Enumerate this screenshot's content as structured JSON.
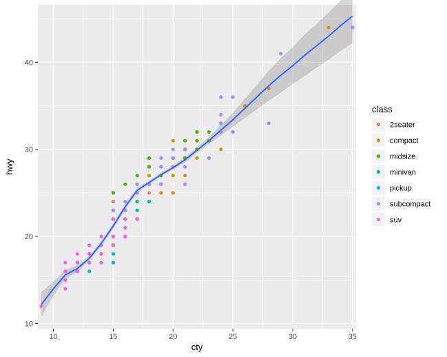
{
  "chart_data": {
    "type": "scatter",
    "xlabel": "cty",
    "ylabel": "hwy",
    "xlim": [
      8.7,
      35.3
    ],
    "ylim": [
      9.4,
      46.6
    ],
    "x_ticks": [
      10,
      15,
      20,
      25,
      30,
      35
    ],
    "y_ticks": [
      10,
      20,
      30,
      40
    ],
    "grid": true,
    "legend": {
      "title": "class",
      "position": "right"
    },
    "series": [
      {
        "name": "2seater",
        "color": "#F8766D",
        "points": [
          [
            15,
            24
          ],
          [
            15,
            25
          ],
          [
            16,
            23
          ],
          [
            15,
            24
          ],
          [
            16,
            23
          ],
          [
            17,
            24
          ],
          [
            18,
            25
          ],
          [
            18,
            26
          ]
        ]
      },
      {
        "name": "compact",
        "color": "#C49A00",
        "points": [
          [
            18,
            29
          ],
          [
            21,
            29
          ],
          [
            20,
            31
          ],
          [
            21,
            30
          ],
          [
            16,
            26
          ],
          [
            18,
            26
          ],
          [
            18,
            27
          ],
          [
            17,
            25
          ],
          [
            19,
            25
          ],
          [
            20,
            25
          ],
          [
            19,
            28
          ],
          [
            21,
            27
          ],
          [
            22,
            29
          ],
          [
            23,
            29
          ],
          [
            24,
            30
          ],
          [
            22,
            31
          ],
          [
            26,
            35
          ],
          [
            28,
            37
          ],
          [
            33,
            44
          ],
          [
            21,
            31
          ],
          [
            19,
            26
          ],
          [
            20,
            27
          ],
          [
            21,
            29
          ],
          [
            22,
            30
          ]
        ]
      },
      {
        "name": "midsize",
        "color": "#53B400",
        "points": [
          [
            15,
            25
          ],
          [
            16,
            26
          ],
          [
            17,
            25
          ],
          [
            18,
            28
          ],
          [
            19,
            27
          ],
          [
            17,
            26
          ],
          [
            18,
            29
          ],
          [
            21,
            31
          ],
          [
            22,
            30
          ],
          [
            19,
            27
          ],
          [
            16,
            24
          ],
          [
            18,
            28
          ],
          [
            21,
            30
          ],
          [
            23,
            32
          ],
          [
            19,
            26
          ],
          [
            22,
            31
          ],
          [
            20,
            29
          ],
          [
            23,
            31
          ],
          [
            24,
            33
          ],
          [
            21,
            29
          ],
          [
            22,
            32
          ],
          [
            17,
            27
          ]
        ]
      },
      {
        "name": "minivan",
        "color": "#00C094",
        "points": [
          [
            18,
            24
          ],
          [
            17,
            24
          ],
          [
            16,
            22
          ],
          [
            16,
            22
          ],
          [
            17,
            24
          ],
          [
            17,
            24
          ],
          [
            15,
            22
          ],
          [
            17,
            23
          ],
          [
            16,
            23
          ],
          [
            17,
            25
          ],
          [
            15,
            23
          ]
        ]
      },
      {
        "name": "pickup",
        "color": "#00B6EB",
        "points": [
          [
            15,
            20
          ],
          [
            14,
            19
          ],
          [
            13,
            17
          ],
          [
            14,
            18
          ],
          [
            15,
            19
          ],
          [
            15,
            18
          ],
          [
            15,
            17
          ],
          [
            14,
            17
          ],
          [
            13,
            16
          ],
          [
            15,
            20
          ],
          [
            17,
            22
          ],
          [
            16,
            20
          ],
          [
            15,
            19
          ],
          [
            14,
            18
          ],
          [
            13,
            17
          ],
          [
            12,
            17
          ],
          [
            11,
            16
          ],
          [
            12,
            17
          ],
          [
            14,
            17
          ],
          [
            15,
            17
          ],
          [
            17,
            22
          ],
          [
            16,
            20
          ],
          [
            15,
            19
          ],
          [
            11,
            15
          ]
        ]
      },
      {
        "name": "subcompact",
        "color": "#A58AFF",
        "points": [
          [
            18,
            26
          ],
          [
            21,
            26
          ],
          [
            19,
            28
          ],
          [
            19,
            29
          ],
          [
            20,
            30
          ],
          [
            18,
            26
          ],
          [
            20,
            29
          ],
          [
            20,
            29
          ],
          [
            21,
            28
          ],
          [
            24,
            32
          ],
          [
            24,
            36
          ],
          [
            25,
            36
          ],
          [
            23,
            29
          ],
          [
            28,
            33
          ],
          [
            29,
            41
          ],
          [
            35,
            44
          ],
          [
            19,
            26
          ],
          [
            20,
            29
          ],
          [
            25,
            32
          ],
          [
            24,
            34
          ],
          [
            21,
            30
          ],
          [
            17,
            26
          ],
          [
            18,
            26
          ],
          [
            20,
            28
          ],
          [
            21,
            30
          ],
          [
            24,
            33
          ],
          [
            16,
            24
          ],
          [
            15,
            20
          ],
          [
            15,
            23
          ],
          [
            14,
            20
          ],
          [
            16,
            23
          ],
          [
            17,
            25
          ],
          [
            15,
            22
          ],
          [
            18,
            26
          ],
          [
            20,
            28
          ]
        ]
      },
      {
        "name": "suv",
        "color": "#FB61D7",
        "points": [
          [
            9,
            12
          ],
          [
            11,
            14
          ],
          [
            11,
            15
          ],
          [
            11,
            16
          ],
          [
            11,
            17
          ],
          [
            12,
            18
          ],
          [
            12,
            17
          ],
          [
            13,
            19
          ],
          [
            13,
            17
          ],
          [
            14,
            19
          ],
          [
            14,
            18
          ],
          [
            14,
            17
          ],
          [
            15,
            19
          ],
          [
            16,
            20
          ],
          [
            15,
            22
          ],
          [
            16,
            22
          ],
          [
            13,
            18
          ],
          [
            14,
            20
          ],
          [
            15,
            20
          ],
          [
            16,
            21
          ],
          [
            17,
            22
          ],
          [
            14,
            19
          ],
          [
            15,
            20
          ],
          [
            11,
            16
          ],
          [
            12,
            16
          ],
          [
            12,
            17
          ],
          [
            14,
            19
          ],
          [
            15,
            19
          ],
          [
            13,
            18
          ],
          [
            12,
            16
          ]
        ]
      }
    ],
    "smooth_line": {
      "color": "#3366FF",
      "band_color": "#999999",
      "x": [
        9,
        10,
        11,
        12,
        13,
        14,
        15,
        16,
        17,
        18,
        19,
        20,
        21,
        22,
        23,
        24,
        25,
        26,
        27,
        28,
        29,
        30,
        31,
        32,
        33,
        34,
        35
      ],
      "y": [
        12.2,
        14.0,
        15.6,
        16.3,
        17.5,
        19.2,
        21.2,
        23.4,
        25.3,
        26.2,
        27.1,
        27.9,
        28.8,
        29.9,
        31.0,
        32.2,
        33.4,
        34.7,
        36.0,
        37.3,
        38.5,
        39.6,
        40.8,
        41.9,
        43.0,
        44.2,
        45.3
      ],
      "lower": [
        10.8,
        13.2,
        15.1,
        15.9,
        17.2,
        18.9,
        20.9,
        23.1,
        25.0,
        26.0,
        26.9,
        27.7,
        28.5,
        29.6,
        30.6,
        31.6,
        32.6,
        33.6,
        34.6,
        35.6,
        36.5,
        37.5,
        38.4,
        39.4,
        40.3,
        41.3,
        42.2
      ],
      "upper": [
        13.6,
        14.8,
        16.1,
        16.7,
        17.8,
        19.5,
        21.5,
        23.7,
        25.6,
        26.4,
        27.3,
        28.1,
        29.1,
        30.2,
        31.4,
        32.8,
        34.2,
        35.8,
        37.4,
        39.0,
        40.5,
        41.7,
        43.2,
        44.4,
        45.7,
        47.1,
        48.4
      ]
    }
  }
}
